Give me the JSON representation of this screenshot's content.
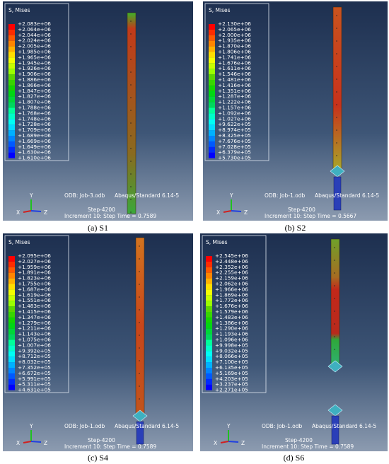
{
  "triad": {
    "y": "Y",
    "x": "X",
    "z": "Z"
  },
  "panels": [
    {
      "caption": "(a) S1",
      "legend_title": "S, Mises",
      "legend": [
        "+2.083e+06",
        "+2.064e+06",
        "+2.044e+06",
        "+2.024e+06",
        "+2.005e+06",
        "+1.985e+06",
        "+1.965e+06",
        "+1.945e+06",
        "+1.926e+06",
        "+1.906e+06",
        "+1.886e+06",
        "+1.866e+06",
        "+1.847e+06",
        "+1.827e+06",
        "+1.807e+06",
        "+1.788e+06",
        "+1.768e+06",
        "+1.748e+06",
        "+1.728e+06",
        "+1.709e+06",
        "+1.689e+06",
        "+1.669e+06",
        "+1.649e+06",
        "+1.630e+06",
        "+1.610e+06"
      ],
      "odb": "ODB: Job-3.odb",
      "solver": "Abaqus/Standard 6.14-5",
      "step": "Step-4200",
      "increment": "Increment     10: Step Time =    0.7589"
    },
    {
      "caption": "(b) S2",
      "legend_title": "S, Mises",
      "legend": [
        "+2.130e+06",
        "+2.065e+06",
        "+2.000e+06",
        "+1.935e+06",
        "+1.870e+06",
        "+1.806e+06",
        "+1.741e+06",
        "+1.676e+06",
        "+1.611e+06",
        "+1.546e+06",
        "+1.481e+06",
        "+1.416e+06",
        "+1.351e+06",
        "+1.287e+06",
        "+1.222e+06",
        "+1.157e+06",
        "+1.092e+06",
        "+1.027e+06",
        "+9.622e+05",
        "+8.974e+05",
        "+8.325e+05",
        "+7.676e+05",
        "+7.028e+05",
        "+6.379e+05",
        "+5.730e+05"
      ],
      "odb": "ODB: Job-1.odb",
      "solver": "Abaqus/Standard 6.14-5",
      "step": "Step-4200",
      "increment": "Increment     10: Step Time =    0.5667"
    },
    {
      "caption": "(c) S4",
      "legend_title": "S, Mises",
      "legend": [
        "+2.095e+06",
        "+2.027e+06",
        "+1.959e+06",
        "+1.891e+06",
        "+1.823e+06",
        "+1.755e+06",
        "+1.687e+06",
        "+1.619e+06",
        "+1.551e+06",
        "+1.483e+06",
        "+1.415e+06",
        "+1.347e+06",
        "+1.279e+06",
        "+1.211e+06",
        "+1.143e+06",
        "+1.075e+06",
        "+1.007e+06",
        "+9.392e+05",
        "+8.712e+05",
        "+8.032e+05",
        "+7.352e+05",
        "+6.672e+05",
        "+5.991e+05",
        "+5.311e+05",
        "+4.631e+05"
      ],
      "odb": "ODB: Job-1.odb",
      "solver": "Abaqus/Standard 6.14-5",
      "step": "Step-4200",
      "increment": "Increment     10: Step Time =    0.7589"
    },
    {
      "caption": "(d) S6",
      "legend_title": "S, Mises",
      "legend": [
        "+2.545e+06",
        "+2.448e+06",
        "+2.352e+06",
        "+2.255e+06",
        "+2.159e+06",
        "+2.062e+06",
        "+1.966e+06",
        "+1.869e+06",
        "+1.772e+06",
        "+1.676e+06",
        "+1.579e+06",
        "+1.483e+06",
        "+1.386e+06",
        "+1.290e+06",
        "+1.193e+06",
        "+1.096e+06",
        "+9.998e+05",
        "+9.032e+05",
        "+8.066e+05",
        "+7.100e+05",
        "+6.135e+05",
        "+5.169e+05",
        "+4.203e+05",
        "+3.237e+05",
        "+2.271e+05"
      ],
      "odb": "ODB: Job-1.odb",
      "solver": "Abaqus/Standard 6.14-5",
      "step": "Step-4200",
      "increment": "Increment     10: Step Time =    0.7589"
    }
  ]
}
